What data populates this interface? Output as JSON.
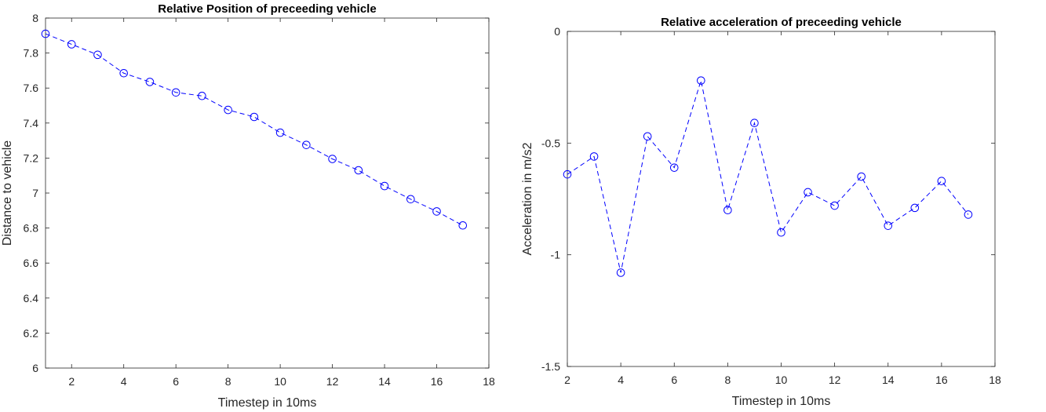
{
  "chart_data": [
    {
      "type": "line",
      "title": "Relative Position of preceeding vehicle",
      "xlabel": "Timestep in 10ms",
      "ylabel": "Distance to vehicle",
      "xlim": [
        1,
        18
      ],
      "ylim": [
        6,
        8
      ],
      "xticks": [
        2,
        4,
        6,
        8,
        10,
        12,
        14,
        16,
        18
      ],
      "yticks": [
        6,
        6.2,
        6.4,
        6.6,
        6.8,
        7,
        7.2,
        7.4,
        7.6,
        7.8,
        8
      ],
      "grid": false,
      "line_style": "dashed",
      "marker": "circle",
      "color": "#0000ff",
      "series": [
        {
          "x": [
            1,
            2,
            3,
            4,
            5,
            6,
            7,
            8,
            9,
            10,
            11,
            12,
            13,
            14,
            15,
            16,
            17
          ],
          "values": [
            7.91,
            7.85,
            7.79,
            7.685,
            7.635,
            7.575,
            7.555,
            7.475,
            7.435,
            7.345,
            7.275,
            7.195,
            7.13,
            7.04,
            6.965,
            6.895,
            6.815
          ]
        }
      ]
    },
    {
      "type": "line",
      "title": "Relative acceleration of preceeding vehicle",
      "xlabel": "Timestep in 10ms",
      "ylabel": "Acceleration in m/s2",
      "xlim": [
        2,
        18
      ],
      "ylim": [
        -1.5,
        0
      ],
      "xticks": [
        2,
        4,
        6,
        8,
        10,
        12,
        14,
        16,
        18
      ],
      "yticks": [
        -1.5,
        -1,
        -0.5,
        0
      ],
      "grid": false,
      "line_style": "dashed",
      "marker": "circle",
      "color": "#0000ff",
      "series": [
        {
          "x": [
            2,
            3,
            4,
            5,
            6,
            7,
            8,
            9,
            10,
            11,
            12,
            13,
            14,
            15,
            16,
            17
          ],
          "values": [
            -0.64,
            -0.56,
            -1.08,
            -0.47,
            -0.61,
            -0.22,
            -0.8,
            -0.41,
            -0.9,
            -0.72,
            -0.78,
            -0.65,
            -0.87,
            -0.79,
            -0.67,
            -0.82
          ]
        }
      ]
    }
  ]
}
